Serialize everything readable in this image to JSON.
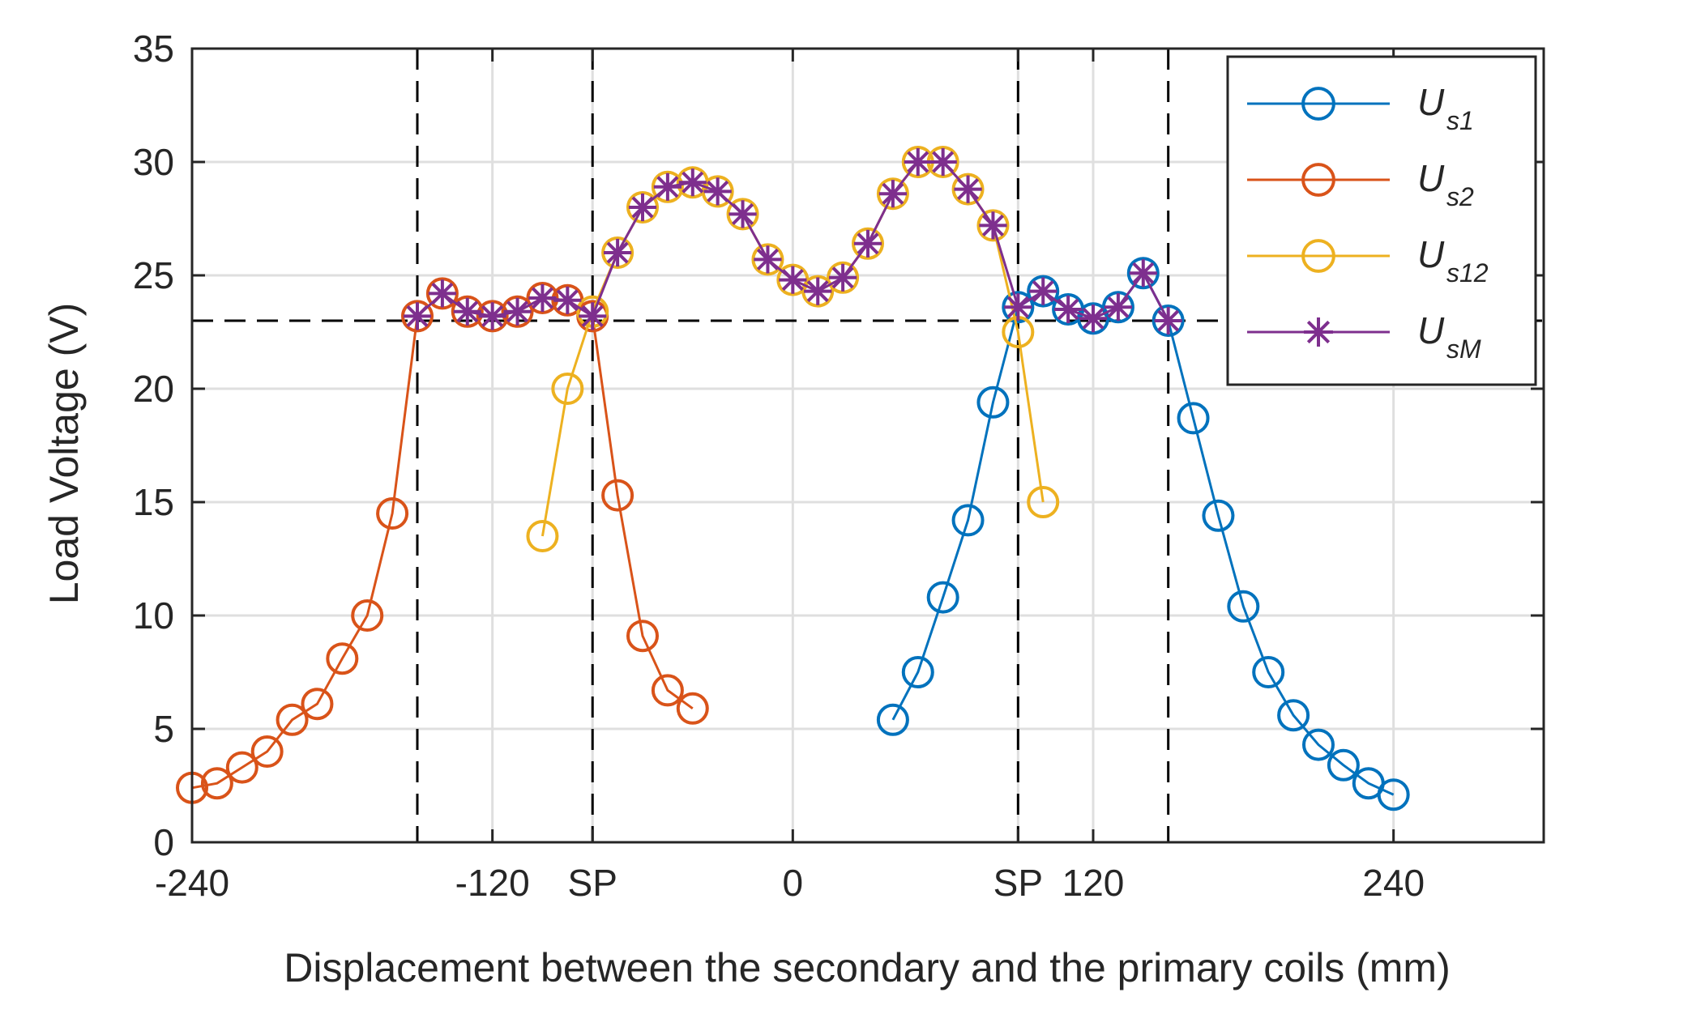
{
  "chart_data": {
    "type": "line",
    "xlabel": "Displacement between the secondary and the primary coils (mm)",
    "ylabel": "Load Voltage (V)",
    "xlim": [
      -240,
      300
    ],
    "ylim": [
      0,
      35
    ],
    "grid": true,
    "xticks": [
      {
        "value": -240,
        "label": "-240"
      },
      {
        "value": -120,
        "label": "-120"
      },
      {
        "value": -80,
        "label": "SP"
      },
      {
        "value": 0,
        "label": "0"
      },
      {
        "value": 90,
        "label": "SP"
      },
      {
        "value": 120,
        "label": "120"
      },
      {
        "value": 240,
        "label": "240"
      }
    ],
    "yticks": [
      0,
      5,
      10,
      15,
      20,
      25,
      30,
      35
    ],
    "reference_lines": {
      "vertical": [
        -150,
        -80,
        90,
        150
      ],
      "horizontal": 23
    },
    "legend_position": "top-right",
    "series": [
      {
        "name": "U",
        "subscript": "s1",
        "color": "#0072BD",
        "marker": "circle",
        "x": [
          40,
          50,
          60,
          70,
          80,
          90,
          100,
          110,
          120,
          130,
          140,
          150,
          160,
          170,
          180,
          190,
          200,
          210,
          220,
          230,
          240
        ],
        "y": [
          5.4,
          7.5,
          10.8,
          14.2,
          19.4,
          23.6,
          24.3,
          23.5,
          23.1,
          23.6,
          25.1,
          23.0,
          18.7,
          14.4,
          10.4,
          7.5,
          5.6,
          4.3,
          3.4,
          2.6,
          2.1
        ]
      },
      {
        "name": "U",
        "subscript": "s2",
        "color": "#D95319",
        "marker": "circle",
        "x": [
          -240,
          -230,
          -220,
          -210,
          -200,
          -190,
          -180,
          -170,
          -160,
          -150,
          -140,
          -130,
          -120,
          -110,
          -100,
          -90,
          -80,
          -70,
          -60,
          -50,
          -40
        ],
        "y": [
          2.4,
          2.6,
          3.3,
          4.0,
          5.4,
          6.1,
          8.1,
          10.0,
          14.5,
          23.2,
          24.2,
          23.4,
          23.2,
          23.4,
          24.0,
          23.9,
          23.2,
          15.3,
          9.1,
          6.7,
          5.9
        ]
      },
      {
        "name": "U",
        "subscript": "s12",
        "color": "#EDB120",
        "marker": "circle",
        "x": [
          -100,
          -90,
          -80,
          -70,
          -60,
          -50,
          -40,
          -30,
          -20,
          -10,
          0,
          10,
          20,
          30,
          40,
          50,
          60,
          70,
          80,
          90,
          100
        ],
        "y": [
          13.5,
          20.0,
          23.4,
          26.0,
          28.0,
          28.9,
          29.1,
          28.7,
          27.7,
          25.7,
          24.8,
          24.3,
          24.9,
          26.4,
          28.6,
          30.0,
          30.0,
          28.8,
          27.2,
          22.5,
          15.0
        ]
      },
      {
        "name": "U",
        "subscript": "sM",
        "color": "#7E2F8E",
        "marker": "star",
        "x": [
          -150,
          -140,
          -130,
          -120,
          -110,
          -100,
          -90,
          -80,
          -70,
          -60,
          -50,
          -40,
          -30,
          -20,
          -10,
          0,
          10,
          20,
          30,
          40,
          50,
          60,
          70,
          80,
          90,
          100,
          110,
          120,
          130,
          140,
          150
        ],
        "y": [
          23.2,
          24.2,
          23.4,
          23.2,
          23.4,
          24.0,
          23.9,
          23.2,
          26.0,
          28.0,
          28.9,
          29.1,
          28.7,
          27.7,
          25.7,
          24.8,
          24.3,
          24.9,
          26.4,
          28.6,
          30.0,
          30.0,
          28.8,
          27.2,
          23.6,
          24.3,
          23.5,
          23.1,
          23.6,
          25.1,
          23.0
        ]
      }
    ]
  }
}
